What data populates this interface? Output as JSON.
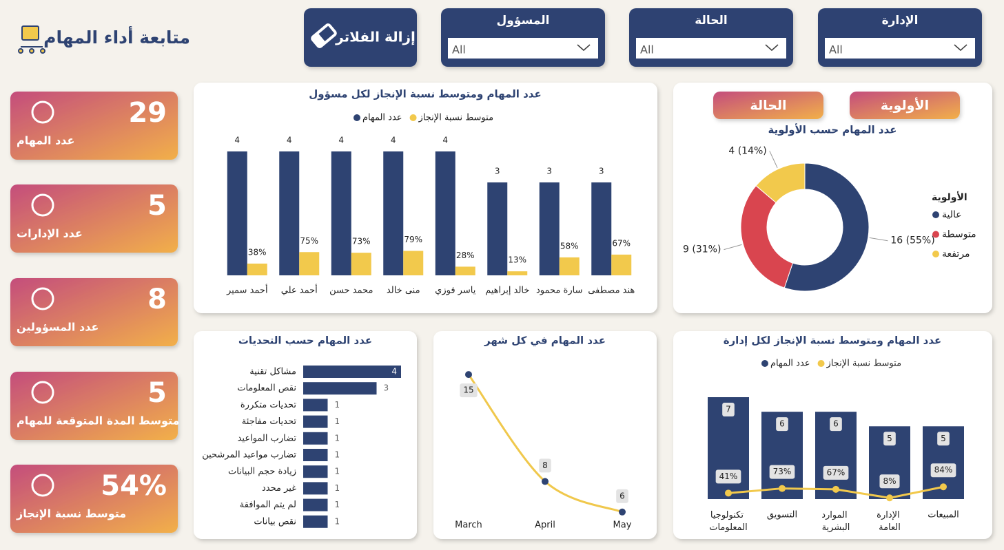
{
  "header": {
    "title": "متابعة أداء المهام"
  },
  "filters": {
    "clear": "إزالة الفلاتر",
    "items": [
      {
        "label": "المسؤول",
        "value": "All"
      },
      {
        "label": "الحالة",
        "value": "All"
      },
      {
        "label": "الإدارة",
        "value": "All"
      }
    ]
  },
  "kpis": [
    {
      "value": "29",
      "label": "عدد المهام"
    },
    {
      "value": "5",
      "label": "عدد الإدارات"
    },
    {
      "value": "8",
      "label": "عدد المسؤولين"
    },
    {
      "value": "5",
      "label": "متوسط المدة المتوقعة للمهام"
    },
    {
      "value": "54%",
      "label": "متوسط نسبة الإنجاز"
    }
  ],
  "toggles": [
    "الحالة",
    "الأولوية"
  ],
  "chart_data": [
    {
      "type": "bar",
      "title": "عدد المهام ومتوسط نسبة الإنجاز لكل مسؤول",
      "categories": [
        "أحمد سمير",
        "أحمد علي",
        "محمد حسن",
        "منى خالد",
        "ياسر فوزي",
        "خالد إبراهيم",
        "سارة محمود",
        "هند مصطفى"
      ],
      "series": [
        {
          "name": "عدد المهام",
          "color": "#2e4372",
          "values": [
            4,
            4,
            4,
            4,
            4,
            3,
            3,
            3
          ]
        },
        {
          "name": "متوسط نسبة الإنجاز",
          "color": "#f2c94c",
          "axis": "y2",
          "values": [
            38,
            75,
            73,
            79,
            28,
            13,
            58,
            67
          ],
          "value_labels": [
            "38%",
            "75%",
            "73%",
            "79%",
            "28%",
            "13%",
            "58%",
            "67%"
          ]
        }
      ],
      "ylim": [
        0,
        4
      ],
      "y2lim": [
        0,
        400
      ]
    },
    {
      "type": "donut",
      "title": "عدد المهام حسب الأولوية",
      "legend_title": "الأولوية",
      "categories": [
        "عالية",
        "متوسطة",
        "مرتفعة"
      ],
      "values": [
        16,
        9,
        4
      ],
      "value_labels": [
        "16 (55%)",
        "9 (31%)",
        "4 (14%)"
      ],
      "colors": [
        "#2e4372",
        "#d9454f",
        "#f2c94c"
      ]
    },
    {
      "type": "hbar",
      "title": "عدد المهام حسب التحديات",
      "categories": [
        "مشاكل تقنية",
        "نقص المعلومات",
        "تحديات متكررة",
        "تحديات مفاجئة",
        "تضارب المواعيد",
        "تضارب مواعيد المرشحين",
        "زيادة حجم البيانات",
        "غير محدد",
        "لم يتم الموافقة",
        "نقص بيانات"
      ],
      "values": [
        4,
        3,
        1,
        1,
        1,
        1,
        1,
        1,
        1,
        1
      ],
      "color": "#2e4372",
      "xlim": [
        0,
        4
      ]
    },
    {
      "type": "line",
      "title": "عدد المهام في كل شهر",
      "categories": [
        "March",
        "April",
        "May"
      ],
      "values": [
        15,
        8,
        6
      ],
      "color": "#f0c84c",
      "marker_color": "#2e4372",
      "ylim": [
        5,
        15.5
      ]
    },
    {
      "type": "bar_line",
      "title": "عدد المهام ومتوسط نسبة الإنجاز لكل إدارة",
      "categories": [
        "تكنولوجيا المعلومات",
        "التسويق",
        "الموارد البشرية",
        "الإدارة العامة",
        "المبيعات"
      ],
      "series": [
        {
          "name": "عدد المهام",
          "color": "#2e4372",
          "values": [
            7,
            6,
            6,
            5,
            5
          ]
        },
        {
          "name": "متوسط نسبة الإنجاز",
          "color": "#f2c94c",
          "axis": "y2",
          "values": [
            41,
            73,
            67,
            8,
            84
          ],
          "value_labels": [
            "41%",
            "73%",
            "67%",
            "8%",
            "84%"
          ]
        }
      ],
      "ylim": [
        0,
        7
      ],
      "y2lim": [
        0,
        700
      ]
    }
  ]
}
